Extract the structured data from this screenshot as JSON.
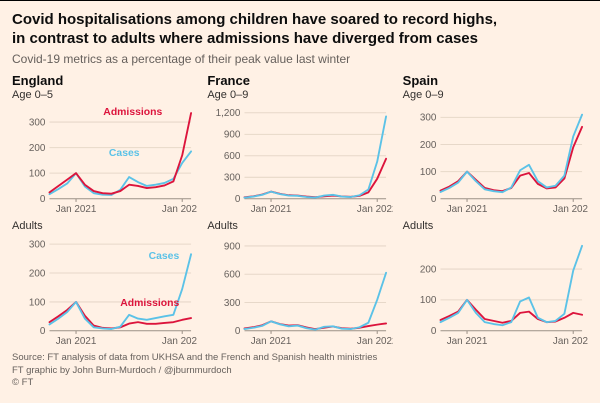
{
  "header": {
    "title_line1": "Covid hospitalisations among children have soared to record highs,",
    "title_line2": "in contrast to adults where admissions have diverged from cases",
    "subtitle": "Covid-19 metrics as a percentage of their peak value last winter"
  },
  "colors": {
    "background": "#fff1e5",
    "admissions": "#dc143c",
    "cases": "#5bc2e7",
    "grid": "#e7d8c9",
    "baseline": "#9c9187",
    "tick_text": "#66605c"
  },
  "footer": {
    "source": "Source: FT analysis of data from UKHSA and the French and Spanish health ministries",
    "credit": "FT graphic by John Burn-Murdoch / @jburnmurdoch",
    "copyright": "© FT"
  },
  "chart_data": [
    {
      "type": "line",
      "title": "England",
      "subtitle": "Age 0–5",
      "x": [
        "Oct 2020",
        "Nov 2020",
        "Dec 2020",
        "Jan 2021",
        "Feb 2021",
        "Mar 2021",
        "Apr 2021",
        "May 2021",
        "Jun 2021",
        "Jul 2021",
        "Aug 2021",
        "Sep 2021",
        "Oct 2021",
        "Nov 2021",
        "Dec 2021",
        "Jan 2022",
        "Feb 2022"
      ],
      "xticks": [
        {
          "label": "Jan 2021",
          "pos": 0.1875
        },
        {
          "label": "Jan 2022",
          "pos": 0.9375
        }
      ],
      "yticks": [
        0,
        100,
        200,
        300
      ],
      "ylim": [
        0,
        350
      ],
      "series": [
        {
          "name": "Cases",
          "color_key": "cases",
          "values": [
            18,
            38,
            60,
            100,
            48,
            22,
            16,
            15,
            35,
            85,
            65,
            50,
            55,
            62,
            78,
            140,
            185
          ]
        },
        {
          "name": "Admissions",
          "color_key": "admissions",
          "values": [
            25,
            50,
            75,
            100,
            55,
            30,
            22,
            20,
            30,
            55,
            50,
            42,
            45,
            52,
            68,
            170,
            335
          ]
        }
      ],
      "annotations": [
        {
          "text": "Admissions",
          "color_key": "admissions",
          "x": 0.38,
          "y": 328
        },
        {
          "text": "Cases",
          "color_key": "cases",
          "x": 0.42,
          "y": 168
        }
      ]
    },
    {
      "type": "line",
      "title": "France",
      "subtitle": "Age 0–9",
      "x": [
        "Oct 2020",
        "Nov 2020",
        "Dec 2020",
        "Jan 2021",
        "Feb 2021",
        "Mar 2021",
        "Apr 2021",
        "May 2021",
        "Jun 2021",
        "Jul 2021",
        "Aug 2021",
        "Sep 2021",
        "Oct 2021",
        "Nov 2021",
        "Dec 2021",
        "Jan 2022",
        "Feb 2022"
      ],
      "xticks": [
        {
          "label": "Jan 2021",
          "pos": 0.1875
        },
        {
          "label": "Jan 2022",
          "pos": 0.9375
        }
      ],
      "yticks": [
        0,
        300,
        600,
        900,
        1200
      ],
      "ylim": [
        0,
        1250
      ],
      "series": [
        {
          "name": "Admissions",
          "color_key": "admissions",
          "values": [
            20,
            35,
            60,
            100,
            70,
            50,
            45,
            30,
            22,
            35,
            45,
            32,
            28,
            40,
            90,
            280,
            560
          ]
        },
        {
          "name": "Cases",
          "color_key": "cases",
          "values": [
            15,
            30,
            55,
            100,
            65,
            45,
            40,
            25,
            18,
            45,
            55,
            30,
            25,
            50,
            130,
            520,
            1150
          ]
        }
      ],
      "annotations": []
    },
    {
      "type": "line",
      "title": "Spain",
      "subtitle": "Age 0–9",
      "x": [
        "Oct 2020",
        "Nov 2020",
        "Dec 2020",
        "Jan 2021",
        "Feb 2021",
        "Mar 2021",
        "Apr 2021",
        "May 2021",
        "Jun 2021",
        "Jul 2021",
        "Aug 2021",
        "Sep 2021",
        "Oct 2021",
        "Nov 2021",
        "Dec 2021",
        "Jan 2022",
        "Feb 2022"
      ],
      "xticks": [
        {
          "label": "Jan 2021",
          "pos": 0.1875
        },
        {
          "label": "Jan 2022",
          "pos": 0.9375
        }
      ],
      "yticks": [
        0,
        100,
        200,
        300
      ],
      "ylim": [
        0,
        330
      ],
      "series": [
        {
          "name": "Admissions",
          "color_key": "admissions",
          "values": [
            30,
            45,
            65,
            100,
            70,
            40,
            32,
            28,
            40,
            85,
            95,
            55,
            38,
            42,
            75,
            190,
            265
          ]
        },
        {
          "name": "Cases",
          "color_key": "cases",
          "values": [
            25,
            40,
            60,
            100,
            65,
            35,
            28,
            24,
            42,
            105,
            125,
            65,
            42,
            48,
            85,
            230,
            310
          ]
        }
      ],
      "annotations": []
    },
    {
      "type": "line",
      "title": "Adults",
      "subtitle": "",
      "country": "England",
      "x": [
        "Oct 2020",
        "Nov 2020",
        "Dec 2020",
        "Jan 2021",
        "Feb 2021",
        "Mar 2021",
        "Apr 2021",
        "May 2021",
        "Jun 2021",
        "Jul 2021",
        "Aug 2021",
        "Sep 2021",
        "Oct 2021",
        "Nov 2021",
        "Dec 2021",
        "Jan 2022",
        "Feb 2022"
      ],
      "xticks": [
        {
          "label": "Jan 2021",
          "pos": 0.1875
        },
        {
          "label": "Jan 2022",
          "pos": 0.9375
        }
      ],
      "yticks": [
        0,
        100,
        200,
        300
      ],
      "ylim": [
        0,
        310
      ],
      "series": [
        {
          "name": "Admissions",
          "color_key": "admissions",
          "values": [
            30,
            50,
            72,
            100,
            52,
            18,
            10,
            8,
            12,
            25,
            30,
            24,
            24,
            27,
            30,
            38,
            44
          ]
        },
        {
          "name": "Cases",
          "color_key": "cases",
          "values": [
            22,
            42,
            65,
            100,
            42,
            12,
            8,
            6,
            14,
            55,
            42,
            38,
            44,
            50,
            55,
            145,
            265
          ]
        }
      ],
      "annotations": [
        {
          "text": "Cases",
          "color_key": "cases",
          "x": 0.7,
          "y": 248
        },
        {
          "text": "Admissions",
          "color_key": "admissions",
          "x": 0.5,
          "y": 85
        }
      ]
    },
    {
      "type": "line",
      "title": "Adults",
      "subtitle": "",
      "country": "France",
      "x": [
        "Oct 2020",
        "Nov 2020",
        "Dec 2020",
        "Jan 2021",
        "Feb 2021",
        "Mar 2021",
        "Apr 2021",
        "May 2021",
        "Jun 2021",
        "Jul 2021",
        "Aug 2021",
        "Sep 2021",
        "Oct 2021",
        "Nov 2021",
        "Dec 2021",
        "Jan 2022",
        "Feb 2022"
      ],
      "xticks": [
        {
          "label": "Jan 2021",
          "pos": 0.1875
        },
        {
          "label": "Jan 2022",
          "pos": 0.9375
        }
      ],
      "yticks": [
        0,
        300,
        600,
        900
      ],
      "ylim": [
        0,
        950
      ],
      "series": [
        {
          "name": "Admissions",
          "color_key": "admissions",
          "values": [
            25,
            38,
            58,
            100,
            72,
            55,
            60,
            35,
            18,
            32,
            45,
            28,
            22,
            32,
            50,
            65,
            78
          ]
        },
        {
          "name": "Cases",
          "color_key": "cases",
          "values": [
            18,
            32,
            52,
            100,
            68,
            48,
            55,
            28,
            12,
            42,
            48,
            22,
            18,
            38,
            85,
            330,
            615
          ]
        }
      ],
      "annotations": []
    },
    {
      "type": "line",
      "title": "Adults",
      "subtitle": "",
      "country": "Spain",
      "x": [
        "Oct 2020",
        "Nov 2020",
        "Dec 2020",
        "Jan 2021",
        "Feb 2021",
        "Mar 2021",
        "Apr 2021",
        "May 2021",
        "Jun 2021",
        "Jul 2021",
        "Aug 2021",
        "Sep 2021",
        "Oct 2021",
        "Nov 2021",
        "Dec 2021",
        "Jan 2022",
        "Feb 2022"
      ],
      "xticks": [
        {
          "label": "Jan 2021",
          "pos": 0.1875
        },
        {
          "label": "Jan 2022",
          "pos": 0.9375
        }
      ],
      "yticks": [
        0,
        100,
        200
      ],
      "ylim": [
        0,
        290
      ],
      "series": [
        {
          "name": "Admissions",
          "color_key": "admissions",
          "values": [
            35,
            48,
            62,
            100,
            68,
            38,
            32,
            26,
            32,
            58,
            62,
            38,
            28,
            30,
            42,
            58,
            52
          ]
        },
        {
          "name": "Cases",
          "color_key": "cases",
          "values": [
            28,
            42,
            58,
            100,
            58,
            28,
            22,
            18,
            28,
            95,
            108,
            42,
            28,
            32,
            55,
            195,
            275
          ]
        }
      ],
      "annotations": []
    }
  ]
}
